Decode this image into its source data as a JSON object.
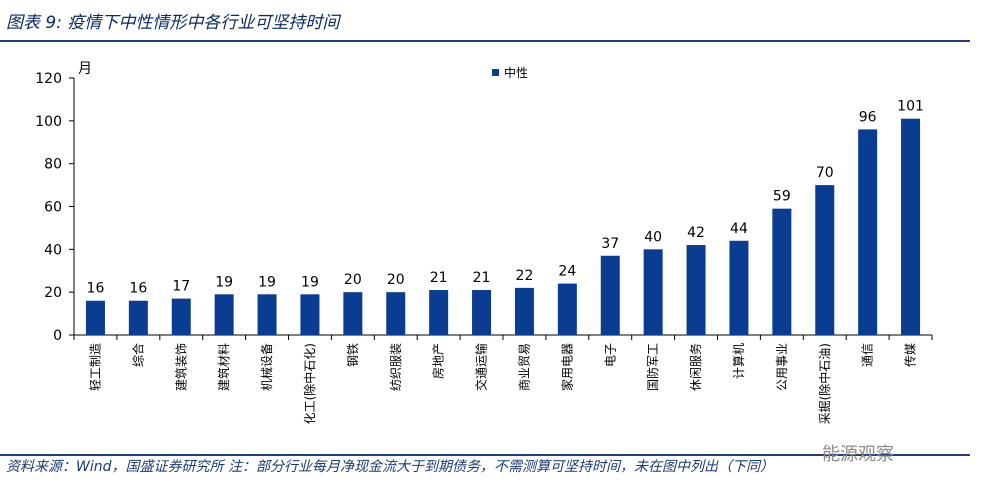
{
  "title": "图表 9:  疫情下中性情形中各行业可坚持时间",
  "source_note": "资料来源：Wind，国盛证券研究所  注：部分行业每月净现金流大于到期债务，不需测算可坚持时间，未在图中列出（下同）",
  "watermark": "能源观察",
  "colors": {
    "bar": "#0a3d91",
    "rule": "#1f3f7a"
  },
  "chart_data": {
    "type": "bar",
    "unit_label": "月",
    "legend": "中性",
    "legend_position": "top",
    "ylim": [
      0,
      120
    ],
    "yticks": [
      0,
      20,
      40,
      60,
      80,
      100,
      120
    ],
    "categories": [
      "轻工制造",
      "综合",
      "建筑装饰",
      "建筑材料",
      "机械设备",
      "化工(除中石化)",
      "钢铁",
      "纺织服装",
      "房地产",
      "交通运输",
      "商业贸易",
      "家用电器",
      "电子",
      "国防军工",
      "休闲服务",
      "计算机",
      "公用事业",
      "采掘(除中石油)",
      "通信",
      "传媒"
    ],
    "values": [
      16,
      16,
      17,
      19,
      19,
      19,
      20,
      20,
      21,
      21,
      22,
      24,
      37,
      40,
      42,
      44,
      59,
      70,
      96,
      101
    ]
  }
}
